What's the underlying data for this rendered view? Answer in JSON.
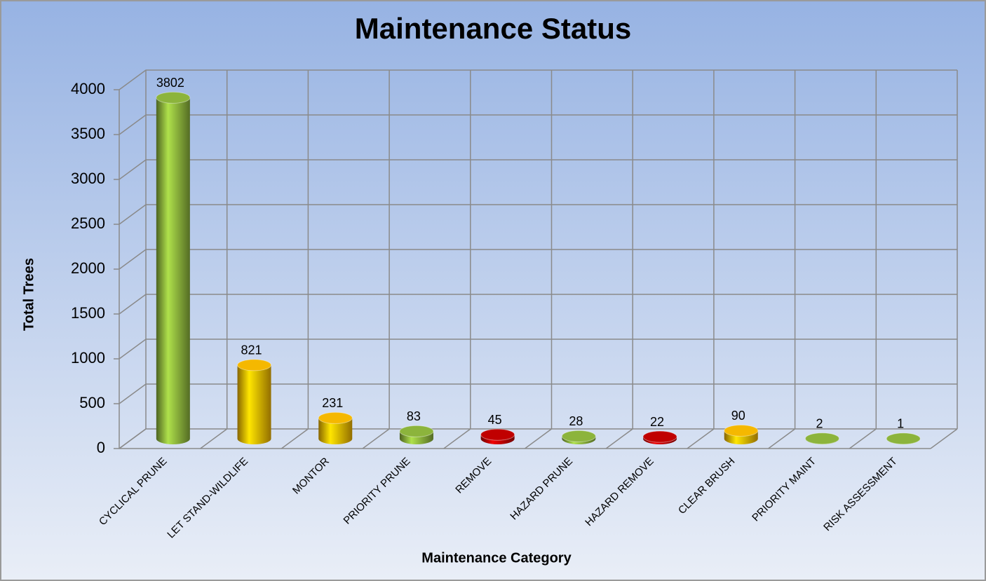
{
  "chart_data": {
    "type": "bar3d",
    "title": "Maintenance Status",
    "xlabel": "Maintenance Category",
    "ylabel": "Total Trees",
    "categories": [
      "CYCLICAL PRUNE",
      "LET STAND-WILDLIFE",
      "MONTOR",
      "PRIORITY PRUNE",
      "REMOVE",
      "HAZARD PRUNE",
      "HAZARD REMOVE",
      "CLEAR BRUSH",
      "PRIORITY MAINT",
      "RISK ASSESSMENT"
    ],
    "values": [
      3802,
      821,
      231,
      83,
      45,
      28,
      22,
      90,
      2,
      1
    ],
    "colors": [
      "#8cb43c",
      "#f5b800",
      "#f5b800",
      "#8cb43c",
      "#c00000",
      "#8cb43c",
      "#c00000",
      "#f5b800",
      "#8cb43c",
      "#8cb43c"
    ],
    "ylim": [
      0,
      4000
    ],
    "yticks": [
      0,
      500,
      1000,
      1500,
      2000,
      2500,
      3000,
      3500,
      4000
    ],
    "grid": true
  }
}
